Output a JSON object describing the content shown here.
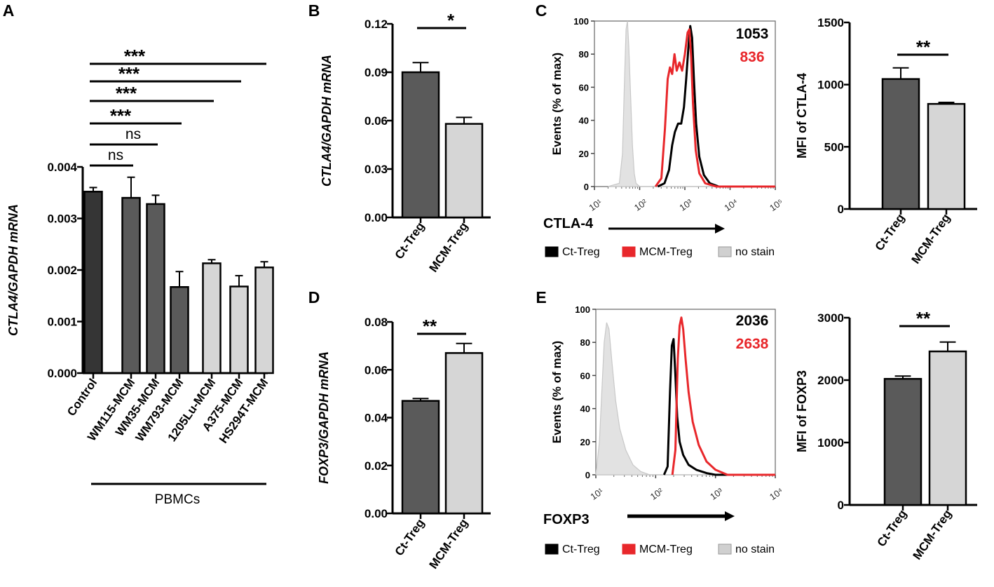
{
  "chart_data": [
    {
      "id": "A",
      "type": "bar",
      "panel_letter": "A",
      "ylabel": "CTLA4/GAPDH mRNA",
      "ylim": [
        0,
        0.004
      ],
      "yticks": [
        0.0,
        0.001,
        0.002,
        0.003,
        0.004
      ],
      "ytick_labels": [
        "0.000",
        "0.001",
        "0.002",
        "0.003",
        "0.004"
      ],
      "categories": [
        "Control",
        "WM115-MCM",
        "WM35-MCM",
        "WM793-MCM",
        "1205Lu-MCM",
        "A375-MCM",
        "HS294T-MCM"
      ],
      "values": [
        0.00352,
        0.0034,
        0.00328,
        0.00167,
        0.00213,
        0.00168,
        0.00205
      ],
      "errors": [
        8e-05,
        0.0004,
        0.00017,
        0.0003,
        7e-05,
        0.00021,
        0.00011
      ],
      "colors": [
        "#353535",
        "#5a5a5a",
        "#5a5a5a",
        "#5a5a5a",
        "#d6d6d6",
        "#d6d6d6",
        "#d6d6d6"
      ],
      "group_label": "PBMCs",
      "significance": [
        {
          "from": 0,
          "to": 1,
          "label": "ns"
        },
        {
          "from": 0,
          "to": 2,
          "label": "ns"
        },
        {
          "from": 0,
          "to": 3,
          "label": "***"
        },
        {
          "from": 0,
          "to": 4,
          "label": "***"
        },
        {
          "from": 0,
          "to": 5,
          "label": "***"
        },
        {
          "from": 0,
          "to": 6,
          "label": "***"
        }
      ]
    },
    {
      "id": "B",
      "type": "bar",
      "panel_letter": "B",
      "ylabel": "CTLA4/GAPDH mRNA",
      "ylim": [
        0,
        0.12
      ],
      "yticks": [
        0,
        0.03,
        0.06,
        0.09,
        0.12
      ],
      "ytick_labels": [
        "0.00",
        "0.03",
        "0.06",
        "0.09",
        "0.12"
      ],
      "categories": [
        "Ct-Treg",
        "MCM-Treg"
      ],
      "values": [
        0.09,
        0.058
      ],
      "errors": [
        0.006,
        0.004
      ],
      "colors": [
        "#5a5a5a",
        "#d6d6d6"
      ],
      "significance": [
        {
          "from": 0,
          "to": 1,
          "label": "*"
        }
      ]
    },
    {
      "id": "C1",
      "type": "line",
      "panel_letter": "C",
      "ylabel": "Events (% of max)",
      "xlabel": "CTLA-4",
      "xlog": true,
      "xlim": [
        1,
        5
      ],
      "ylim": [
        0,
        100
      ],
      "yticks": [
        0,
        20,
        40,
        60,
        80,
        100
      ],
      "ytick_labels": [
        "0",
        "20",
        "40",
        "60",
        "80",
        "100"
      ],
      "xticks": [
        1,
        2,
        3,
        4,
        5
      ],
      "xtick_labels": [
        "10¹",
        "10²",
        "10³",
        "10⁴",
        "10⁵"
      ],
      "annotations": [
        {
          "text": "1053",
          "color": "#000000"
        },
        {
          "text": "836",
          "color": "#e8272b"
        }
      ],
      "series": [
        {
          "name": "no stain",
          "color": "#c8c8c8",
          "fill": true,
          "x": [
            1.3,
            1.55,
            1.62,
            1.66,
            1.7,
            1.73,
            1.76,
            1.8,
            1.84,
            1.88,
            1.92,
            2.0,
            2.3,
            5.0
          ],
          "y": [
            0,
            2,
            20,
            60,
            95,
            100,
            85,
            55,
            25,
            8,
            2,
            0,
            0,
            0
          ]
        },
        {
          "name": "Ct-Treg",
          "color": "#000000",
          "fill": false,
          "x": [
            2.4,
            2.55,
            2.65,
            2.72,
            2.78,
            2.85,
            2.92,
            2.98,
            3.03,
            3.08,
            3.12,
            3.16,
            3.2,
            3.25,
            3.32,
            3.42,
            3.55,
            3.75,
            5.0
          ],
          "y": [
            0,
            2,
            10,
            25,
            33,
            38,
            38,
            48,
            65,
            85,
            97,
            90,
            65,
            38,
            18,
            7,
            2,
            0,
            0
          ]
        },
        {
          "name": "MCM-Treg",
          "color": "#e8272b",
          "fill": false,
          "x": [
            2.35,
            2.48,
            2.56,
            2.62,
            2.67,
            2.72,
            2.77,
            2.82,
            2.88,
            2.94,
            3.0,
            3.06,
            3.1,
            3.14,
            3.18,
            3.24,
            3.32,
            3.45,
            3.7,
            5.0
          ],
          "y": [
            0,
            5,
            35,
            65,
            72,
            68,
            80,
            70,
            75,
            70,
            80,
            93,
            95,
            78,
            50,
            22,
            8,
            2,
            0,
            0
          ]
        }
      ],
      "legend": [
        "Ct-Treg",
        "MCM-Treg",
        "no stain"
      ]
    },
    {
      "id": "C2",
      "type": "bar",
      "ylabel": "MFI of CTLA-4",
      "ylim": [
        0,
        1500
      ],
      "yticks": [
        0,
        500,
        1000,
        1500
      ],
      "ytick_labels": [
        "0",
        "500",
        "1000",
        "1500"
      ],
      "categories": [
        "Ct-Treg",
        "MCM-Treg"
      ],
      "values": [
        1045,
        845
      ],
      "errors": [
        90,
        12
      ],
      "colors": [
        "#5a5a5a",
        "#d6d6d6"
      ],
      "significance": [
        {
          "from": 0,
          "to": 1,
          "label": "**"
        }
      ]
    },
    {
      "id": "D",
      "type": "bar",
      "panel_letter": "D",
      "ylabel": "FOXP3/GAPDH mRNA",
      "ylim": [
        0,
        0.08
      ],
      "yticks": [
        0,
        0.02,
        0.04,
        0.06,
        0.08
      ],
      "ytick_labels": [
        "0.00",
        "0.02",
        "0.04",
        "0.06",
        "0.08"
      ],
      "categories": [
        "Ct-Treg",
        "MCM-Treg"
      ],
      "values": [
        0.047,
        0.067
      ],
      "errors": [
        0.001,
        0.004
      ],
      "colors": [
        "#5a5a5a",
        "#d6d6d6"
      ],
      "significance": [
        {
          "from": 0,
          "to": 1,
          "label": "**"
        }
      ]
    },
    {
      "id": "E1",
      "type": "line",
      "panel_letter": "E",
      "ylabel": "Events (% of max)",
      "xlabel": "FOXP3",
      "xlog": true,
      "xlim": [
        1,
        4
      ],
      "ylim": [
        0,
        100
      ],
      "yticks": [
        0,
        20,
        40,
        60,
        80,
        100
      ],
      "ytick_labels": [
        "0",
        "20",
        "40",
        "60",
        "80",
        "100"
      ],
      "xticks": [
        1,
        2,
        3,
        4
      ],
      "xtick_labels": [
        "10¹",
        "10²",
        "10³",
        "10⁴"
      ],
      "annotations": [
        {
          "text": "2036",
          "color": "#000000"
        },
        {
          "text": "2638",
          "color": "#e8272b"
        }
      ],
      "series": [
        {
          "name": "no stain",
          "color": "#c8c8c8",
          "fill": true,
          "x": [
            1.0,
            1.06,
            1.1,
            1.14,
            1.18,
            1.22,
            1.27,
            1.33,
            1.4,
            1.5,
            1.62,
            1.75,
            1.9,
            4.0
          ],
          "y": [
            0,
            20,
            50,
            80,
            92,
            88,
            68,
            45,
            28,
            15,
            6,
            2,
            0,
            0
          ]
        },
        {
          "name": "Ct-Treg",
          "color": "#000000",
          "fill": false,
          "x": [
            2.14,
            2.2,
            2.24,
            2.27,
            2.3,
            2.33,
            2.36,
            2.4,
            2.46,
            2.55,
            2.68,
            2.85,
            3.0,
            4.0
          ],
          "y": [
            0,
            5,
            50,
            78,
            82,
            60,
            35,
            20,
            12,
            6,
            3,
            1,
            0,
            0
          ]
        },
        {
          "name": "MCM-Treg",
          "color": "#e8272b",
          "fill": false,
          "x": [
            2.28,
            2.33,
            2.37,
            2.4,
            2.43,
            2.46,
            2.5,
            2.55,
            2.62,
            2.72,
            2.85,
            3.0,
            3.2,
            4.0
          ],
          "y": [
            0,
            15,
            70,
            90,
            95,
            88,
            70,
            50,
            32,
            18,
            8,
            3,
            0,
            0
          ]
        }
      ],
      "legend": [
        "Ct-Treg",
        "MCM-Treg",
        "no stain"
      ]
    },
    {
      "id": "E2",
      "type": "bar",
      "ylabel": "MFI of FOXP3",
      "ylim": [
        0,
        3000
      ],
      "yticks": [
        0,
        1000,
        2000,
        3000
      ],
      "ytick_labels": [
        "0",
        "1000",
        "2000",
        "3000"
      ],
      "categories": [
        "Ct-Treg",
        "MCM-Treg"
      ],
      "values": [
        2020,
        2460
      ],
      "errors": [
        45,
        150
      ],
      "colors": [
        "#5a5a5a",
        "#d6d6d6"
      ],
      "significance": [
        {
          "from": 0,
          "to": 1,
          "label": "**"
        }
      ]
    }
  ]
}
